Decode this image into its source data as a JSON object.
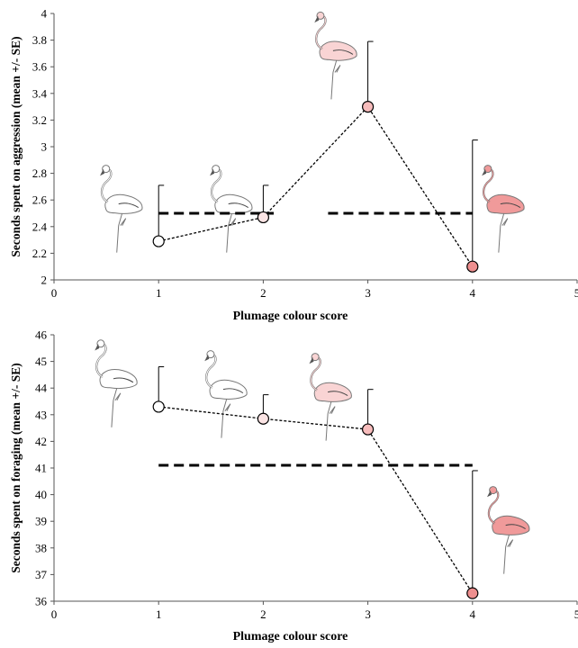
{
  "chart_data": [
    {
      "type": "line",
      "title": "",
      "xlabel": "Plumage colour score",
      "ylabel": "Seconds spent on aggression (mean +/- SE)",
      "xlim": [
        0,
        5
      ],
      "ylim": [
        2,
        4
      ],
      "xticks": [
        "0",
        "1",
        "2",
        "3",
        "4",
        "5"
      ],
      "yticks": [
        "2",
        "2.2",
        "2.4",
        "2.6",
        "2.8",
        "3",
        "3.2",
        "3.4",
        "3.6",
        "3.8",
        "4"
      ],
      "grid": false,
      "series": [
        {
          "x": [
            1,
            2,
            3,
            4
          ],
          "y": [
            2.29,
            2.47,
            3.3,
            2.1
          ],
          "error_upper": [
            2.71,
            2.71,
            3.79,
            3.05
          ],
          "marker_colors": [
            "#ffffff",
            "#fbe4e4",
            "#f7bcbc",
            "#ee8f8f"
          ]
        }
      ],
      "reference_segments": [
        {
          "x": [
            1,
            2.1
          ],
          "y": 2.5
        },
        {
          "x": [
            2.62,
            4
          ],
          "y": 2.5
        }
      ],
      "flamingo_icons": [
        {
          "near_x": 0.6,
          "near_y": 2.3,
          "color": "#ffffff"
        },
        {
          "near_x": 1.65,
          "near_y": 2.3,
          "color": "#ffffff"
        },
        {
          "near_x": 2.65,
          "near_y": 3.45,
          "color": "#f9d4d4"
        },
        {
          "near_x": 4.25,
          "near_y": 2.3,
          "color": "#f09a9a"
        }
      ]
    },
    {
      "type": "line",
      "title": "",
      "xlabel": "Plumage colour score",
      "ylabel": "Seconds spent on foraging (mean +/- SE)",
      "xlim": [
        0,
        5
      ],
      "ylim": [
        36,
        46
      ],
      "xticks": [
        "0",
        "1",
        "2",
        "3",
        "4",
        "5"
      ],
      "yticks": [
        "36",
        "37",
        "38",
        "39",
        "40",
        "41",
        "42",
        "43",
        "44",
        "45",
        "46"
      ],
      "grid": false,
      "series": [
        {
          "x": [
            1,
            2,
            3,
            4
          ],
          "y": [
            43.3,
            42.85,
            42.45,
            36.3
          ],
          "error_upper": [
            44.8,
            43.75,
            43.95,
            40.9
          ],
          "marker_colors": [
            "#ffffff",
            "#fbe4e4",
            "#f7bcbc",
            "#ee8f8f"
          ]
        }
      ],
      "reference_segments": [
        {
          "x": [
            1,
            4
          ],
          "y": 41.1
        }
      ],
      "flamingo_icons": [
        {
          "near_x": 0.55,
          "near_y": 43.0,
          "color": "#ffffff"
        },
        {
          "near_x": 1.6,
          "near_y": 42.6,
          "color": "#ffffff"
        },
        {
          "near_x": 2.6,
          "near_y": 42.5,
          "color": "#f9d4d4"
        },
        {
          "near_x": 4.3,
          "near_y": 37.5,
          "color": "#f09a9a"
        }
      ]
    }
  ]
}
